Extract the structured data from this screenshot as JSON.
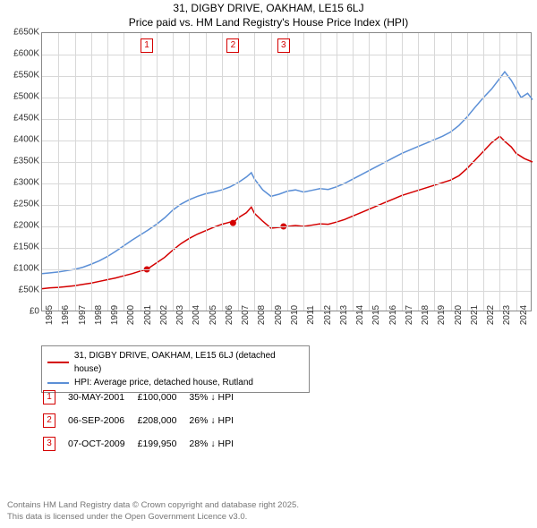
{
  "title_line1": "31, DIGBY DRIVE, OAKHAM, LE15 6LJ",
  "title_line2": "Price paid vs. HM Land Registry's House Price Index (HPI)",
  "chart": {
    "type": "line",
    "background_color": "#ffffff",
    "grid_color": "#d8d8d8",
    "axis_color": "#888888",
    "ylim": [
      0,
      650000
    ],
    "ytick_step": 50000,
    "yticks": [
      "£0",
      "£50K",
      "£100K",
      "£150K",
      "£200K",
      "£250K",
      "£300K",
      "£350K",
      "£400K",
      "£450K",
      "£500K",
      "£550K",
      "£600K",
      "£650K"
    ],
    "xlim": [
      1995,
      2025
    ],
    "xticks": [
      1995,
      1996,
      1997,
      1998,
      1999,
      2000,
      2001,
      2002,
      2003,
      2004,
      2005,
      2006,
      2007,
      2008,
      2009,
      2010,
      2011,
      2012,
      2013,
      2014,
      2015,
      2016,
      2017,
      2018,
      2019,
      2020,
      2021,
      2022,
      2023,
      2024
    ],
    "series": [
      {
        "name": "property",
        "label": "31, DIGBY DRIVE, OAKHAM, LE15 6LJ (detached house)",
        "color": "#d40000",
        "line_width": 1.5,
        "points": [
          [
            1995,
            55000
          ],
          [
            1995.5,
            57000
          ],
          [
            1996,
            58000
          ],
          [
            1996.5,
            60000
          ],
          [
            1997,
            62000
          ],
          [
            1997.5,
            65000
          ],
          [
            1998,
            68000
          ],
          [
            1998.5,
            72000
          ],
          [
            1999,
            76000
          ],
          [
            1999.5,
            80000
          ],
          [
            2000,
            85000
          ],
          [
            2000.5,
            90000
          ],
          [
            2001,
            96000
          ],
          [
            2001.41,
            100000
          ],
          [
            2002,
            115000
          ],
          [
            2002.5,
            128000
          ],
          [
            2003,
            145000
          ],
          [
            2003.5,
            160000
          ],
          [
            2004,
            172000
          ],
          [
            2004.5,
            182000
          ],
          [
            2005,
            190000
          ],
          [
            2005.5,
            198000
          ],
          [
            2006,
            205000
          ],
          [
            2006.5,
            210000
          ],
          [
            2006.68,
            208000
          ],
          [
            2007,
            220000
          ],
          [
            2007.5,
            232000
          ],
          [
            2007.8,
            245000
          ],
          [
            2008,
            230000
          ],
          [
            2008.5,
            212000
          ],
          [
            2009,
            196000
          ],
          [
            2009.5,
            198000
          ],
          [
            2009.77,
            199950
          ],
          [
            2010,
            200000
          ],
          [
            2010.5,
            202000
          ],
          [
            2011,
            200000
          ],
          [
            2011.5,
            203000
          ],
          [
            2012,
            206000
          ],
          [
            2012.5,
            205000
          ],
          [
            2013,
            210000
          ],
          [
            2013.5,
            216000
          ],
          [
            2014,
            224000
          ],
          [
            2014.5,
            232000
          ],
          [
            2015,
            240000
          ],
          [
            2015.5,
            248000
          ],
          [
            2016,
            256000
          ],
          [
            2016.5,
            264000
          ],
          [
            2017,
            272000
          ],
          [
            2017.5,
            278000
          ],
          [
            2018,
            284000
          ],
          [
            2018.5,
            290000
          ],
          [
            2019,
            296000
          ],
          [
            2019.5,
            302000
          ],
          [
            2020,
            308000
          ],
          [
            2020.5,
            318000
          ],
          [
            2021,
            335000
          ],
          [
            2021.5,
            355000
          ],
          [
            2022,
            375000
          ],
          [
            2022.5,
            395000
          ],
          [
            2023,
            410000
          ],
          [
            2023.3,
            398000
          ],
          [
            2023.7,
            385000
          ],
          [
            2024,
            370000
          ],
          [
            2024.5,
            358000
          ],
          [
            2025,
            350000
          ]
        ]
      },
      {
        "name": "hpi",
        "label": "HPI: Average price, detached house, Rutland",
        "color": "#5b8fd6",
        "line_width": 1.5,
        "points": [
          [
            1995,
            90000
          ],
          [
            1995.5,
            92000
          ],
          [
            1996,
            94000
          ],
          [
            1996.5,
            97000
          ],
          [
            1997,
            100000
          ],
          [
            1997.5,
            105000
          ],
          [
            1998,
            112000
          ],
          [
            1998.5,
            120000
          ],
          [
            1999,
            130000
          ],
          [
            1999.5,
            142000
          ],
          [
            2000,
            155000
          ],
          [
            2000.5,
            168000
          ],
          [
            2001,
            180000
          ],
          [
            2001.5,
            192000
          ],
          [
            2002,
            205000
          ],
          [
            2002.5,
            220000
          ],
          [
            2003,
            238000
          ],
          [
            2003.5,
            252000
          ],
          [
            2004,
            262000
          ],
          [
            2004.5,
            270000
          ],
          [
            2005,
            276000
          ],
          [
            2005.5,
            280000
          ],
          [
            2006,
            285000
          ],
          [
            2006.5,
            292000
          ],
          [
            2007,
            302000
          ],
          [
            2007.5,
            315000
          ],
          [
            2007.8,
            325000
          ],
          [
            2008,
            310000
          ],
          [
            2008.5,
            285000
          ],
          [
            2009,
            270000
          ],
          [
            2009.5,
            275000
          ],
          [
            2010,
            282000
          ],
          [
            2010.5,
            285000
          ],
          [
            2011,
            280000
          ],
          [
            2011.5,
            284000
          ],
          [
            2012,
            288000
          ],
          [
            2012.5,
            286000
          ],
          [
            2013,
            292000
          ],
          [
            2013.5,
            300000
          ],
          [
            2014,
            310000
          ],
          [
            2014.5,
            320000
          ],
          [
            2015,
            330000
          ],
          [
            2015.5,
            340000
          ],
          [
            2016,
            350000
          ],
          [
            2016.5,
            360000
          ],
          [
            2017,
            370000
          ],
          [
            2017.5,
            378000
          ],
          [
            2018,
            386000
          ],
          [
            2018.5,
            394000
          ],
          [
            2019,
            402000
          ],
          [
            2019.5,
            410000
          ],
          [
            2020,
            420000
          ],
          [
            2020.5,
            435000
          ],
          [
            2021,
            455000
          ],
          [
            2021.5,
            478000
          ],
          [
            2022,
            500000
          ],
          [
            2022.5,
            520000
          ],
          [
            2023,
            545000
          ],
          [
            2023.3,
            560000
          ],
          [
            2023.7,
            540000
          ],
          [
            2024,
            520000
          ],
          [
            2024.3,
            500000
          ],
          [
            2024.7,
            510000
          ],
          [
            2025,
            495000
          ]
        ]
      }
    ],
    "sale_markers": [
      {
        "num": "1",
        "year": 2001.41,
        "color": "#d40000"
      },
      {
        "num": "2",
        "year": 2006.68,
        "color": "#d40000"
      },
      {
        "num": "3",
        "year": 2009.77,
        "color": "#d40000"
      }
    ]
  },
  "legend": {
    "items": [
      {
        "color": "#d40000",
        "label": "31, DIGBY DRIVE, OAKHAM, LE15 6LJ (detached house)"
      },
      {
        "color": "#5b8fd6",
        "label": "HPI: Average price, detached house, Rutland"
      }
    ]
  },
  "sales": [
    {
      "num": "1",
      "date": "30-MAY-2001",
      "price": "£100,000",
      "delta": "35% ↓ HPI",
      "color": "#d40000"
    },
    {
      "num": "2",
      "date": "06-SEP-2006",
      "price": "£208,000",
      "delta": "26% ↓ HPI",
      "color": "#d40000"
    },
    {
      "num": "3",
      "date": "07-OCT-2009",
      "price": "£199,950",
      "delta": "28% ↓ HPI",
      "color": "#d40000"
    }
  ],
  "footer_line1": "Contains HM Land Registry data © Crown copyright and database right 2025.",
  "footer_line2": "This data is licensed under the Open Government Licence v3.0."
}
